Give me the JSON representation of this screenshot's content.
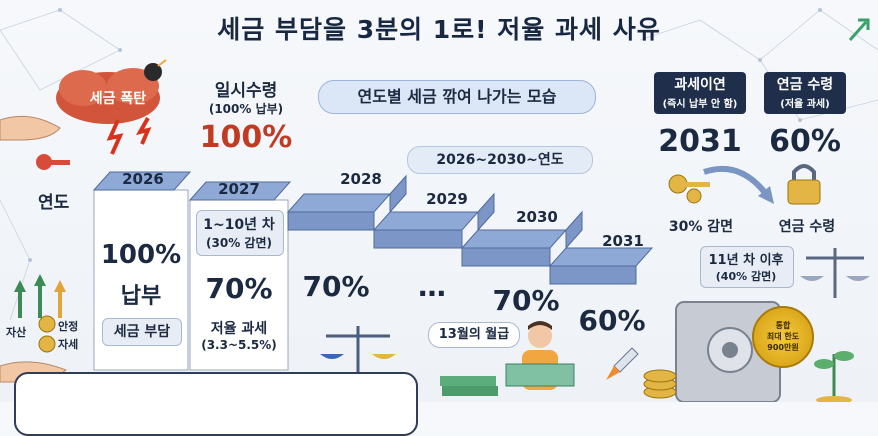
{
  "title": "세금 부담을 3분의 1로! 저율 과세 사유",
  "cloud_label": "세금 폭탄",
  "subtitle_bubble": "연도별 세금 깎여 나가는 모습",
  "range_pill": "2026~2030~연도",
  "year_axis_label": "연도",
  "lump_sum": {
    "title": "일시수령",
    "sub": "(100% 납부)",
    "pct": "100%"
  },
  "years": [
    "2026",
    "2027",
    "2028",
    "2029",
    "2030",
    "2031"
  ],
  "col_2026": {
    "pct": "100%",
    "label": "납부",
    "tag": "세금 부담"
  },
  "col_2027": {
    "range": "1~10년 차",
    "sub": "(30% 감면)",
    "pct": "70%",
    "tag": "저율 과세",
    "tag_sub": "(3.3~5.5%)"
  },
  "col_2028": {
    "pct": "70%"
  },
  "col_2029": {
    "pct": "…"
  },
  "col_2030": {
    "pct": "70%"
  },
  "col_2031": {
    "pct": "60%"
  },
  "bonus_bubble": "13월의 월급",
  "deferral": {
    "title": "과세이연",
    "sub": "(즉시 납부 안 함)",
    "year": "2031"
  },
  "annuity": {
    "title": "연금 수령",
    "sub": "(저율 과세)",
    "pct": "60%"
  },
  "reduction_30": "30% 감면",
  "annuity_label2": "연금 수령",
  "after_11": {
    "title": "11년 차 이후",
    "sub": "(40% 감면)"
  },
  "stamp": {
    "line1": "통합",
    "line2": "최대 한도",
    "line3": "900만원"
  },
  "left_labels": {
    "asset": "자산",
    "stable": "안정",
    "wealth": "자세"
  },
  "colors": {
    "accent_red": "#c13a22",
    "step_blue": "#8fa9d6",
    "dark_navy": "#1f2e4a"
  }
}
